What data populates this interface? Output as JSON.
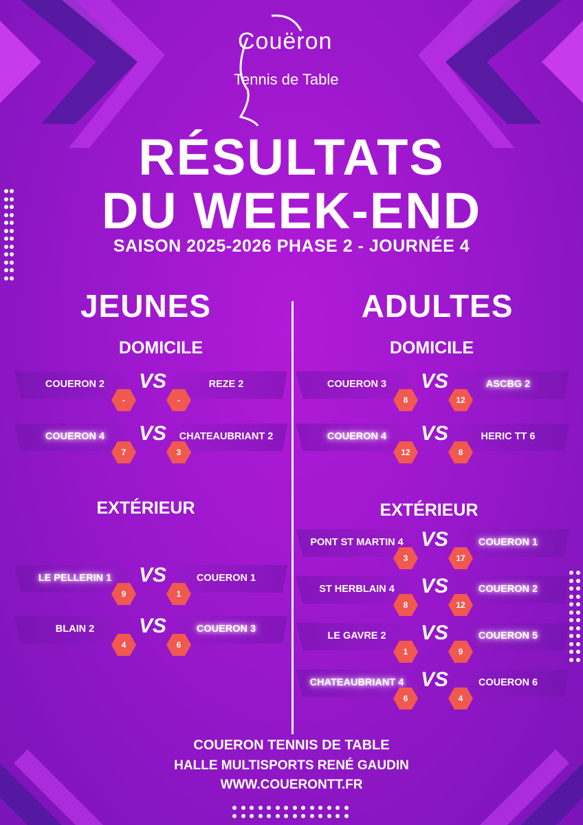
{
  "logo": {
    "line1": "Couëron",
    "line2": "Tennis de Table"
  },
  "title": {
    "line1": "RÉSULTATS",
    "line2": "DU WEEK-END"
  },
  "subtitle": "SAISON 2025-2026 PHASE 2 - JOURNÉE 4",
  "colors": {
    "background": "#9a18cc",
    "score_hex": "#f0594f"
  },
  "vs_label": "VS",
  "jeunes": {
    "title": "JEUNES",
    "domicile": {
      "title": "DOMICILE",
      "matches": [
        {
          "home": "COUERON 2",
          "away": "REZE 2",
          "home_score": "-",
          "away_score": "-",
          "winner": ""
        },
        {
          "home": "COUERON 4",
          "away": "CHATEAUBRIANT 2",
          "home_score": "7",
          "away_score": "3",
          "winner": "home"
        }
      ]
    },
    "exterieur": {
      "title": "EXTÉRIEUR",
      "matches": [
        {
          "home": "LE PELLERIN 1",
          "away": "COUERON 1",
          "home_score": "9",
          "away_score": "1",
          "winner": "home"
        },
        {
          "home": "BLAIN 2",
          "away": "COUERON 3",
          "home_score": "4",
          "away_score": "6",
          "winner": "away"
        }
      ]
    }
  },
  "adultes": {
    "title": "ADULTES",
    "domicile": {
      "title": "DOMICILE",
      "matches": [
        {
          "home": "COUERON 3",
          "away": "ASCBG 2",
          "home_score": "8",
          "away_score": "12",
          "winner": "away"
        },
        {
          "home": "COUERON 4",
          "away": "HERIC TT 6",
          "home_score": "12",
          "away_score": "8",
          "winner": "home"
        }
      ]
    },
    "exterieur": {
      "title": "EXTÉRIEUR",
      "matches": [
        {
          "home": "PONT ST MARTIN 4",
          "away": "COUERON 1",
          "home_score": "3",
          "away_score": "17",
          "winner": "away"
        },
        {
          "home": "ST HERBLAIN 4",
          "away": "COUERON 2",
          "home_score": "8",
          "away_score": "12",
          "winner": "away"
        },
        {
          "home": "LE GAVRE 2",
          "away": "COUERON 5",
          "home_score": "1",
          "away_score": "9",
          "winner": "away"
        },
        {
          "home": "CHATEAUBRIANT 4",
          "away": "COUERON 6",
          "home_score": "6",
          "away_score": "4",
          "winner": "home"
        }
      ]
    }
  },
  "footer": {
    "club": "COUERON TENNIS DE TABLE",
    "venue": "HALLE MULTISPORTS RENÉ GAUDIN",
    "website": "WWW.COUERONTT.FR"
  }
}
